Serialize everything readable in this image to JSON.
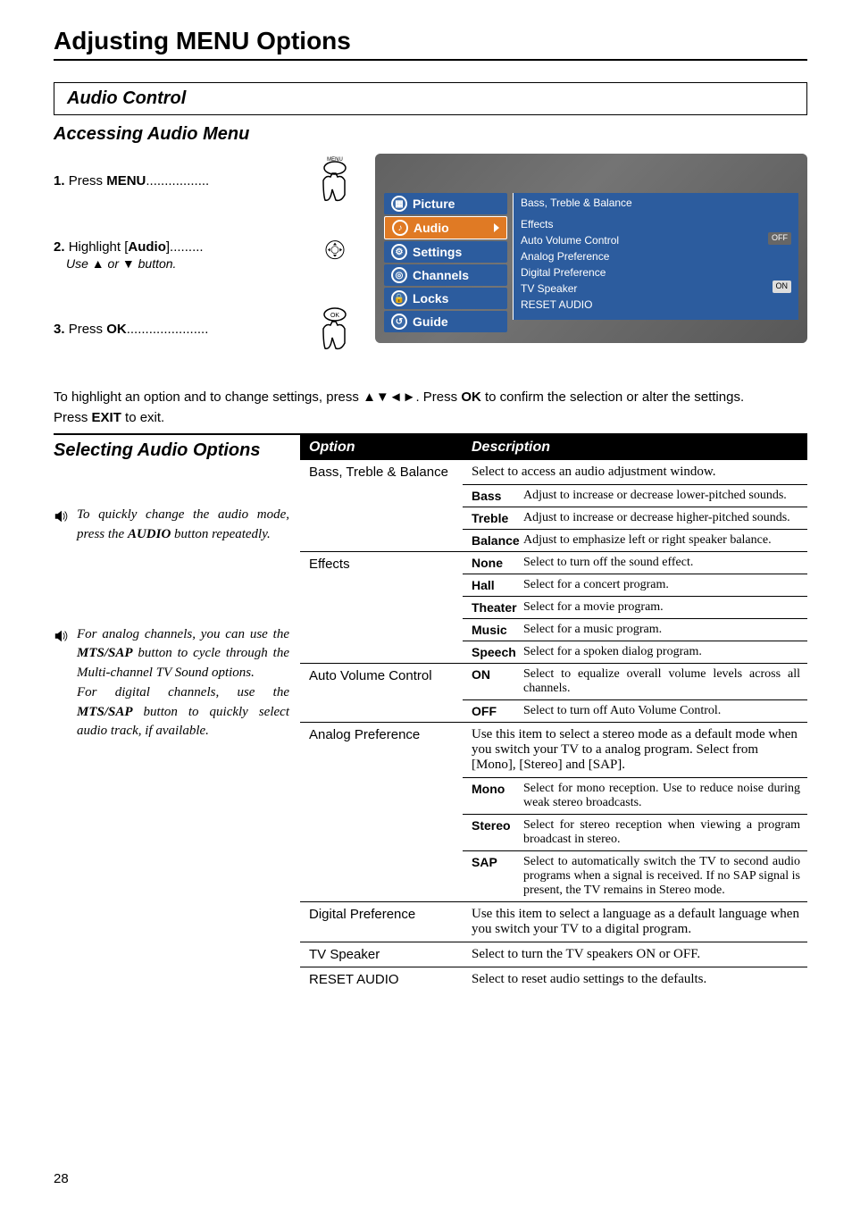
{
  "page": {
    "title": "Adjusting MENU Options",
    "section": "Audio Control",
    "subsection": "Accessing Audio Menu",
    "number": "28"
  },
  "steps": [
    {
      "num": "1.",
      "pre": "Press ",
      "kw": "MENU",
      "dots": ".................",
      "sub": "",
      "icon_label": "MENU"
    },
    {
      "num": "2.",
      "pre": "Highlight [",
      "kw": "Audio",
      "post": "].........",
      "sub": "Use ▲ or ▼ button.",
      "icon_label": ""
    },
    {
      "num": "3.",
      "pre": "Press ",
      "kw": "OK",
      "dots": "......................",
      "sub": "",
      "icon_label": "OK"
    }
  ],
  "osd": {
    "items": [
      {
        "label": "Picture",
        "cls": "picture",
        "glyph": "▦"
      },
      {
        "label": "Audio",
        "cls": "audio",
        "glyph": "♪",
        "active": true
      },
      {
        "label": "Settings",
        "cls": "settings",
        "glyph": "⚙"
      },
      {
        "label": "Channels",
        "cls": "channels",
        "glyph": "◎"
      },
      {
        "label": "Locks",
        "cls": "locks",
        "glyph": "🔒"
      },
      {
        "label": "Guide",
        "cls": "guide",
        "glyph": "↺"
      }
    ],
    "top": "Bass, Treble & Balance",
    "body": [
      {
        "t": "Effects"
      },
      {
        "t": "Auto Volume Control",
        "badge": "OFF"
      },
      {
        "t": "Analog Preference"
      },
      {
        "t": "Digital Preference"
      },
      {
        "t": "TV Speaker",
        "badge": "ON"
      },
      {
        "t": "RESET AUDIO"
      }
    ]
  },
  "instructions": {
    "line1a": "To highlight an option and to change settings, press ▲▼◄►. Press ",
    "line1b": "OK",
    "line1c": " to confirm the selection or alter the settings.",
    "line2a": "Press ",
    "line2b": "EXIT",
    "line2c": " to exit."
  },
  "left": {
    "heading": "Selecting Audio Options",
    "tip1a": "To quickly change the audio mode, press the ",
    "tip1b": "AUDIO",
    "tip1c": " button repeatedly.",
    "tip2a": "For analog channels, you can use the ",
    "tip2b": "MTS/SAP",
    "tip2c": " button to cycle through the Multi-channel TV Sound options.",
    "tip2d": "For digital channels, use the ",
    "tip2e": "MTS/SAP",
    "tip2f": " button to quickly select audio track, if available."
  },
  "table": {
    "headers": {
      "opt": "Option",
      "desc": "Description"
    },
    "rows": [
      {
        "opt": "Bass, Treble & Balance",
        "intro": "Select to access an audio adjustment window.",
        "subs": [
          {
            "k": "Bass",
            "v": "Adjust to increase or decrease lower-pitched sounds."
          },
          {
            "k": "Treble",
            "v": "Adjust to increase or decrease higher-pitched sounds."
          },
          {
            "k": "Balance",
            "v": "Adjust to emphasize left or right speaker balance."
          }
        ]
      },
      {
        "opt": "Effects",
        "subs": [
          {
            "k": "None",
            "v": "Select to turn off the sound effect."
          },
          {
            "k": "Hall",
            "v": "Select for a concert program."
          },
          {
            "k": "Theater",
            "v": "Select for a movie program."
          },
          {
            "k": "Music",
            "v": "Select for a music program."
          },
          {
            "k": "Speech",
            "v": "Select for a spoken dialog program."
          }
        ]
      },
      {
        "opt": "Auto Volume Control",
        "subs": [
          {
            "k": "ON",
            "v": "Select to equalize overall volume levels across all channels."
          },
          {
            "k": "OFF",
            "v": "Select to turn off Auto Volume Control."
          }
        ]
      },
      {
        "opt": "Analog Preference",
        "intro": "Use this item to select a stereo mode as a default mode when you switch your TV to a analog program. Select from [Mono], [Stereo] and [SAP].",
        "subs": [
          {
            "k": "Mono",
            "v": "Select for mono reception. Use to reduce noise during weak stereo broadcasts."
          },
          {
            "k": "Stereo",
            "v": "Select for stereo reception when viewing a program broadcast in stereo."
          },
          {
            "k": "SAP",
            "v": "Select to automatically switch the TV to second audio programs when a signal is received. If no SAP signal is present, the TV remains in Stereo mode."
          }
        ]
      },
      {
        "opt": "Digital Preference",
        "intro": "Use this item to select a language as a default language when you switch your TV to a digital program."
      },
      {
        "opt": "TV Speaker",
        "intro": "Select to turn the TV speakers ON or OFF."
      },
      {
        "opt": "RESET AUDIO",
        "intro": "Select to reset audio settings to the defaults."
      }
    ]
  },
  "colors": {
    "menu_blue": "#2c5c9e",
    "menu_orange": "#e07a24",
    "bg": "#ffffff"
  }
}
